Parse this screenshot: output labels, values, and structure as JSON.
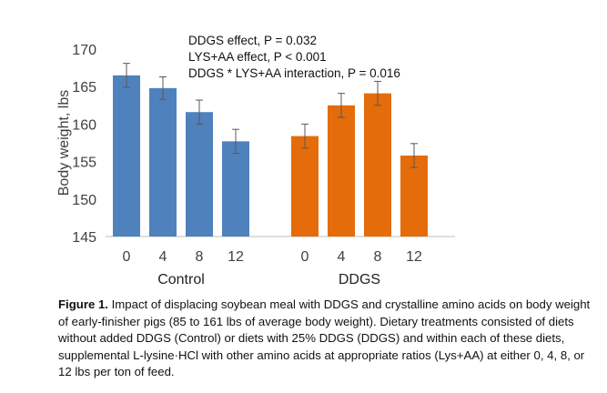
{
  "chart_data": {
    "type": "bar",
    "ylabel": "Body weight, lbs",
    "ylim": [
      145,
      170
    ],
    "yticks": [
      145,
      150,
      155,
      160,
      165,
      170
    ],
    "grid": false,
    "annotations": [
      "DDGS effect, P = 0.032",
      "LYS+AA effect, P < 0.001",
      "DDGS * LYS+AA interaction, P = 0.016"
    ],
    "groups": [
      {
        "name": "Control",
        "color": "#4F81BD",
        "categories": [
          "0",
          "4",
          "8",
          "12"
        ],
        "values": [
          166.5,
          164.8,
          161.6,
          157.7
        ],
        "error": [
          1.6,
          1.5,
          1.6,
          1.6
        ]
      },
      {
        "name": "DDGS",
        "color": "#E46C0A",
        "categories": [
          "0",
          "4",
          "8",
          "12"
        ],
        "values": [
          158.4,
          162.5,
          164.1,
          155.8
        ],
        "error": [
          1.6,
          1.6,
          1.6,
          1.6
        ]
      }
    ]
  },
  "caption": {
    "label": "Figure 1.",
    "text": " Impact of displacing soybean meal with DDGS and crystalline amino acids on body weight of early-finisher pigs (85 to 161 lbs of average body weight). Dietary treatments consisted of diets without added DDGS (Control) or diets with 25% DDGS (DDGS) and within each of these diets, supplemental L-lysine·HCl with other amino acids at appropriate ratios (Lys+AA) at either 0, 4, 8, or 12 lbs per ton of feed."
  }
}
